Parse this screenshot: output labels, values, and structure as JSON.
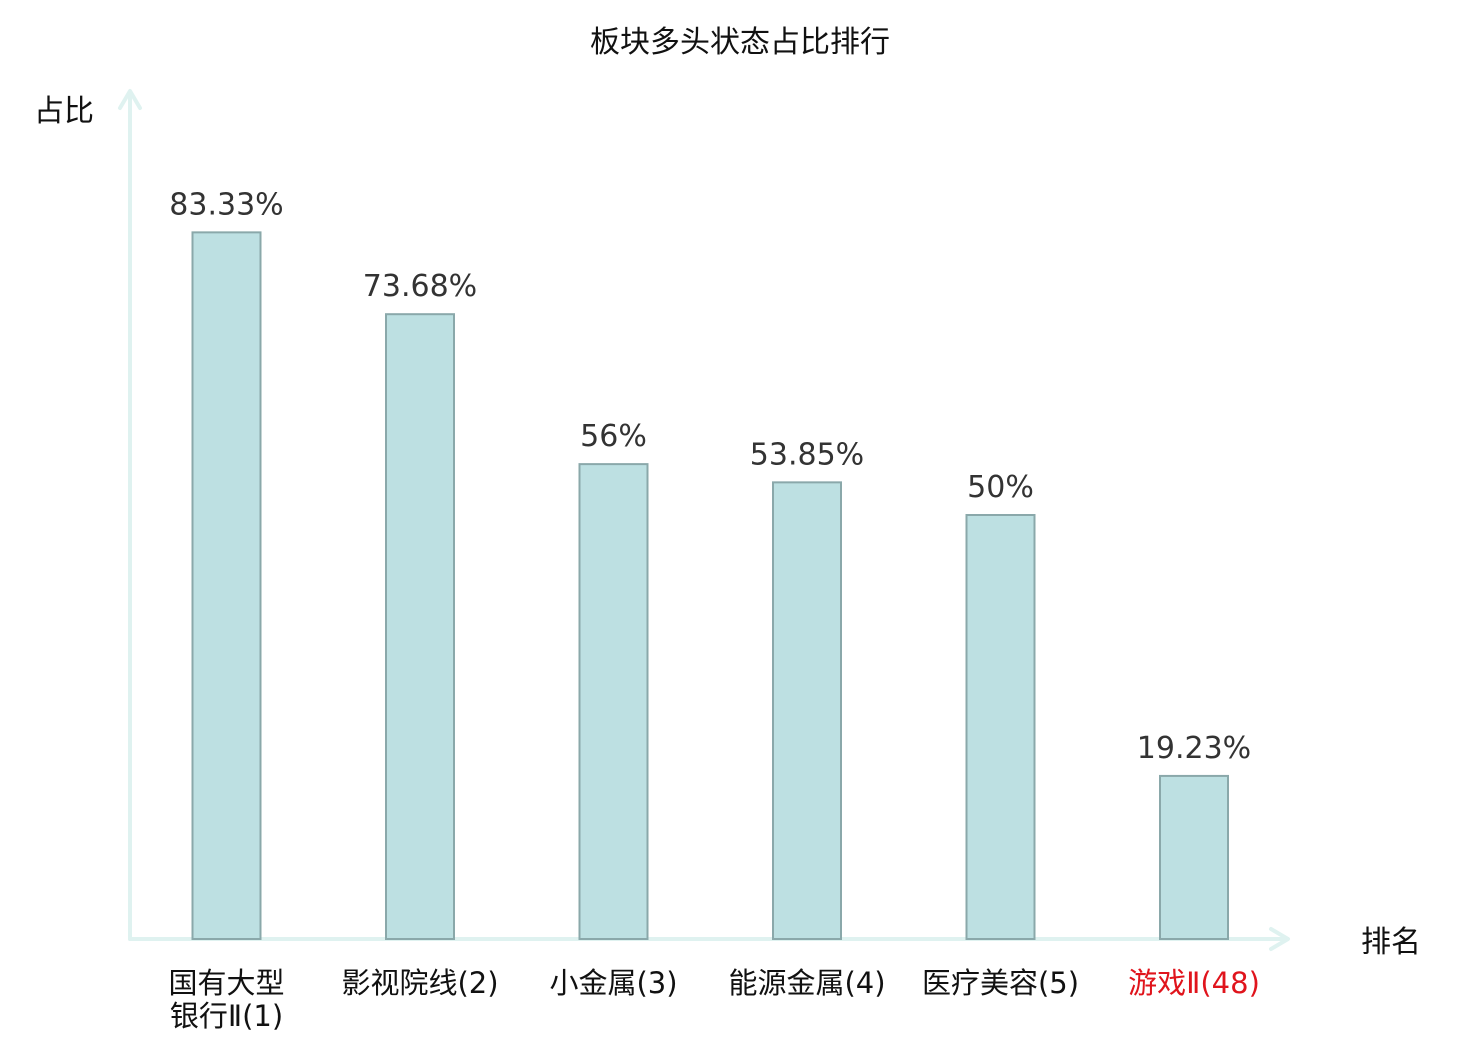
{
  "chart_data": {
    "type": "bar",
    "title": "板块多头状态占比排行",
    "ylabel": "占比",
    "xlabel": "排名",
    "categories": [
      {
        "lines": [
          "国有大型",
          "银行Ⅱ(1)"
        ],
        "highlight": false
      },
      {
        "lines": [
          "影视院线(2)"
        ],
        "highlight": false
      },
      {
        "lines": [
          "小金属(3)"
        ],
        "highlight": false
      },
      {
        "lines": [
          "能源金属(4)"
        ],
        "highlight": false
      },
      {
        "lines": [
          "医疗美容(5)"
        ],
        "highlight": false
      },
      {
        "lines": [
          "游戏Ⅱ(48)"
        ],
        "highlight": true
      }
    ],
    "values": [
      83.33,
      73.68,
      56,
      53.85,
      50,
      19.23
    ],
    "value_labels": [
      "83.33%",
      "73.68%",
      "56%",
      "53.85%",
      "50%",
      "19.23%"
    ],
    "ylim": [
      0,
      100
    ],
    "grid": false,
    "legend": "none",
    "colors": {
      "bar_fill": "#bde0e2",
      "bar_stroke": "#8aa8aa",
      "axis": "#dff2f0",
      "highlight_text": "#e0141c",
      "text": "#111111",
      "value_text": "#333333"
    }
  }
}
